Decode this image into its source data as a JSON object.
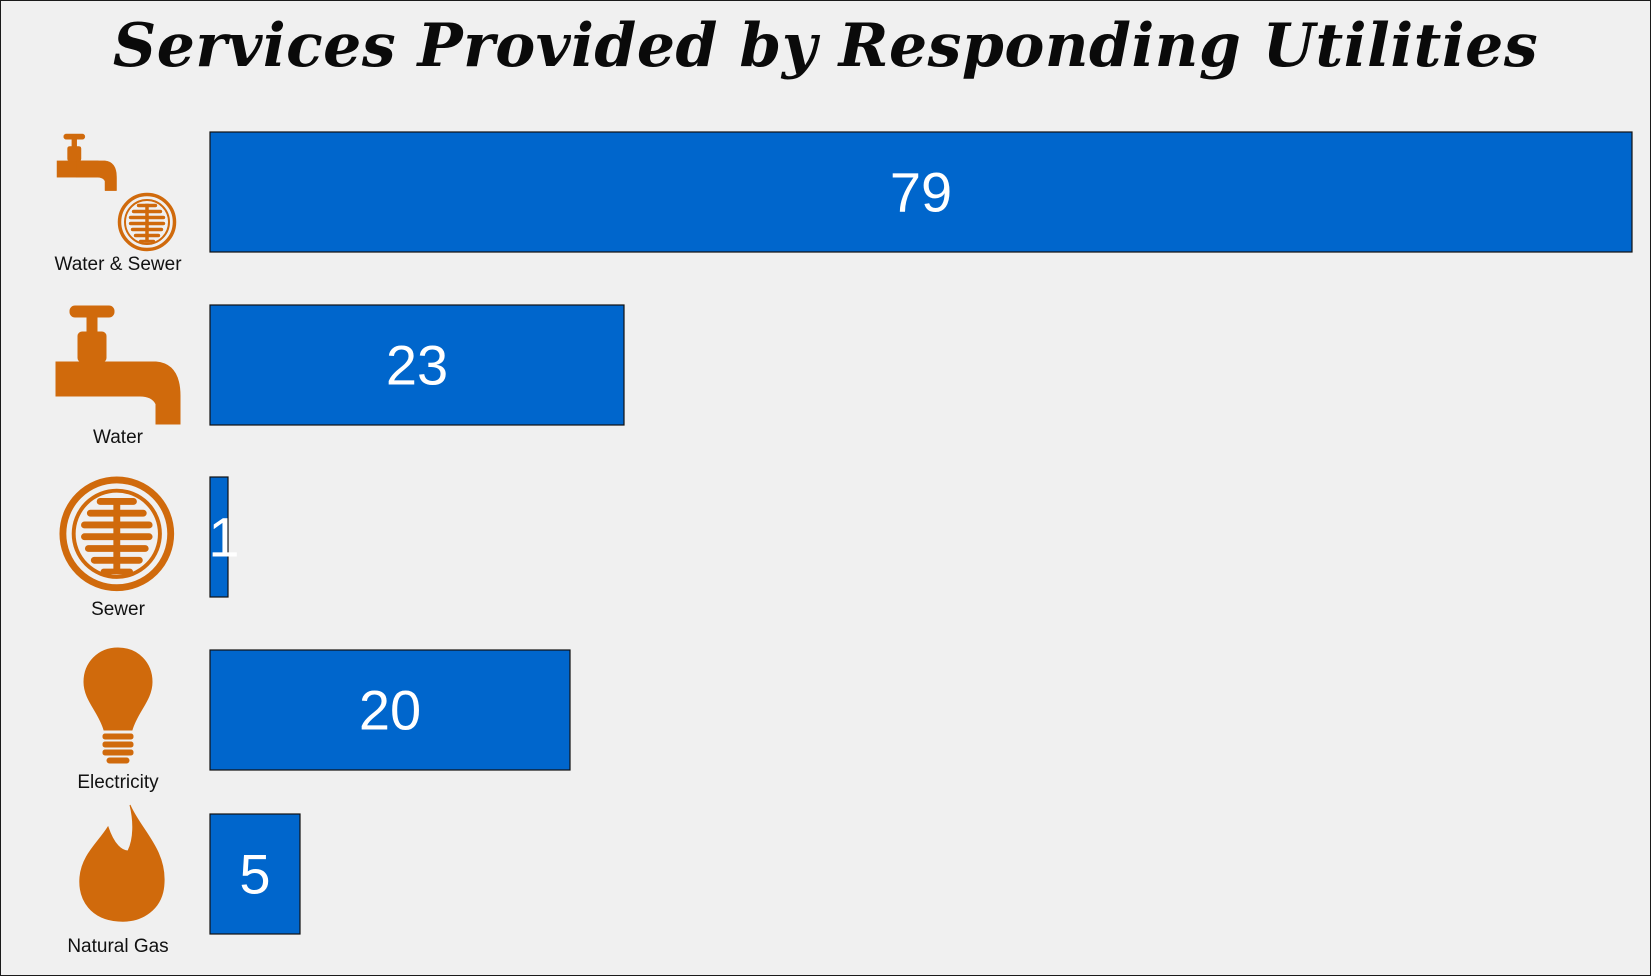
{
  "colors": {
    "bar": "#0066cc",
    "icon": "#d06a0c",
    "background": "#f0f0f0",
    "value_text": "#ffffff",
    "label_text": "#111111"
  },
  "chart_data": {
    "type": "bar",
    "orientation": "horizontal",
    "title": "Services Provided by Responding Utilities",
    "xlabel": "",
    "ylabel": "",
    "xlim": [
      0,
      79
    ],
    "grid": false,
    "legend": "none",
    "categories": [
      "Water & Sewer",
      "Water",
      "Sewer",
      "Electricity",
      "Natural Gas"
    ],
    "icons": [
      "faucet-and-manhole-icon",
      "faucet-icon",
      "manhole-cover-icon",
      "light-bulb-icon",
      "flame-icon"
    ],
    "values": [
      79,
      23,
      1,
      20,
      5
    ]
  }
}
